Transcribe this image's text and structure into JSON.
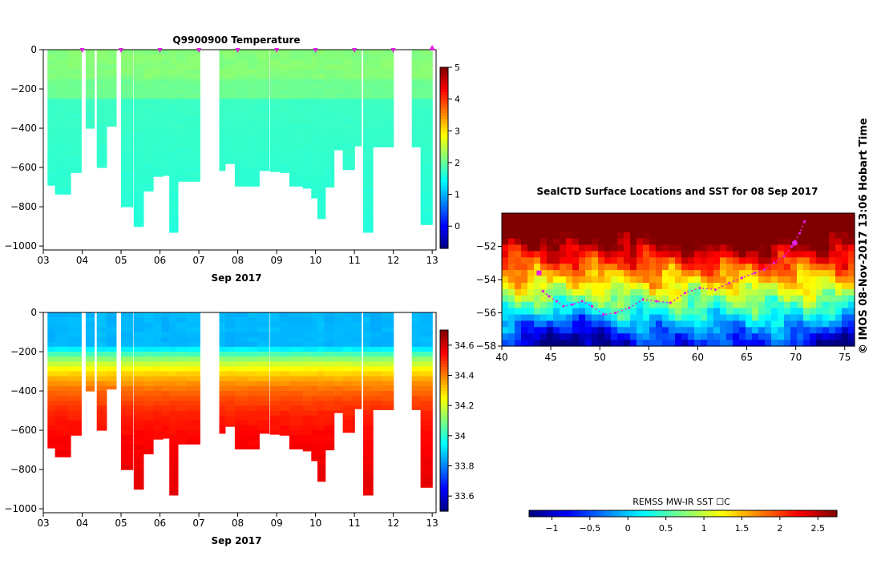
{
  "chart_data": [
    {
      "type": "heatmap",
      "title": "Q9900900  Temperature",
      "xlabel": "Sep 2017",
      "x_ticks": [
        "03",
        "04",
        "05",
        "06",
        "07",
        "08",
        "09",
        "10",
        "11",
        "12",
        "13"
      ],
      "y_ticks": [
        "0",
        "−200",
        "−400",
        "−600",
        "−800",
        "−1000"
      ],
      "xlim": [
        3.0,
        13.1
      ],
      "ylim": [
        -1020,
        0
      ],
      "colorbar": {
        "ticks": [
          "0",
          "1",
          "2",
          "3",
          "4",
          "5"
        ],
        "range": [
          -0.7,
          5
        ]
      },
      "profiles": [
        {
          "t": 3.25,
          "w": 0.28,
          "depth": 690
        },
        {
          "t": 3.5,
          "w": 0.4,
          "depth": 735
        },
        {
          "t": 3.8,
          "w": 0.35,
          "depth": 625
        },
        {
          "t": 4.2,
          "w": 0.22,
          "depth": 400
        },
        {
          "t": 4.5,
          "w": 0.25,
          "depth": 600
        },
        {
          "t": 4.75,
          "w": 0.25,
          "depth": 390
        },
        {
          "t": 5.15,
          "w": 0.3,
          "depth": 800
        },
        {
          "t": 5.45,
          "w": 0.25,
          "depth": 900
        },
        {
          "t": 5.7,
          "w": 0.25,
          "depth": 720
        },
        {
          "t": 5.95,
          "w": 0.25,
          "depth": 645
        },
        {
          "t": 6.15,
          "w": 0.22,
          "depth": 640
        },
        {
          "t": 6.35,
          "w": 0.22,
          "depth": 930
        },
        {
          "t": 6.55,
          "w": 0.25,
          "depth": 670
        },
        {
          "t": 6.85,
          "w": 0.35,
          "depth": 670
        },
        {
          "t": 7.6,
          "w": 0.15,
          "depth": 615
        },
        {
          "t": 7.8,
          "w": 0.25,
          "depth": 580
        },
        {
          "t": 8.1,
          "w": 0.35,
          "depth": 695
        },
        {
          "t": 8.4,
          "w": 0.3,
          "depth": 695
        },
        {
          "t": 8.65,
          "w": 0.3,
          "depth": 615
        },
        {
          "t": 8.95,
          "w": 0.25,
          "depth": 620
        },
        {
          "t": 9.2,
          "w": 0.25,
          "depth": 625
        },
        {
          "t": 9.5,
          "w": 0.35,
          "depth": 695
        },
        {
          "t": 9.8,
          "w": 0.25,
          "depth": 705
        },
        {
          "t": 10.0,
          "w": 0.22,
          "depth": 755
        },
        {
          "t": 10.15,
          "w": 0.2,
          "depth": 860
        },
        {
          "t": 10.35,
          "w": 0.25,
          "depth": 700
        },
        {
          "t": 10.6,
          "w": 0.25,
          "depth": 510
        },
        {
          "t": 10.85,
          "w": 0.3,
          "depth": 610
        },
        {
          "t": 11.05,
          "w": 0.25,
          "depth": 490
        },
        {
          "t": 11.35,
          "w": 0.25,
          "depth": 930
        },
        {
          "t": 11.55,
          "w": 0.3,
          "depth": 495
        },
        {
          "t": 11.85,
          "w": 0.3,
          "depth": 495
        },
        {
          "t": 12.6,
          "w": 0.25,
          "depth": 495
        },
        {
          "t": 12.85,
          "w": 0.3,
          "depth": 890
        }
      ],
      "surface_markers": [
        4,
        5,
        6,
        7,
        8,
        9,
        10,
        11,
        12,
        13
      ]
    },
    {
      "type": "heatmap",
      "title": "",
      "xlabel": "Sep 2017",
      "x_ticks": [
        "03",
        "04",
        "05",
        "06",
        "07",
        "08",
        "09",
        "10",
        "11",
        "12",
        "13"
      ],
      "y_ticks": [
        "0",
        "−200",
        "−400",
        "−600",
        "−800",
        "−1000"
      ],
      "xlim": [
        3.0,
        13.1
      ],
      "ylim": [
        -1020,
        0
      ],
      "colorbar": {
        "ticks": [
          "33.6",
          "33.8",
          "34",
          "34.2",
          "34.4",
          "34.6"
        ],
        "range": [
          33.5,
          34.7
        ]
      }
    },
    {
      "type": "heatmap",
      "title": "SealCTD Surface Locations and SST for 08 Sep 2017",
      "x_ticks": [
        "40",
        "45",
        "50",
        "55",
        "60",
        "65",
        "70",
        "75"
      ],
      "y_ticks": [
        "−52",
        "−54",
        "−56",
        "−58"
      ],
      "xlim": [
        40,
        76
      ],
      "ylim": [
        -58,
        -50
      ],
      "colorbar_label": "REMSS MW-IR SST ☐C",
      "colorbar_ticks": [
        "−1",
        "−0.5",
        "0",
        "0.5",
        "1",
        "1.5",
        "2",
        "2.5"
      ],
      "colorbar_range": [
        -1.3,
        2.75
      ],
      "track": [
        [
          44.2,
          -54.7
        ],
        [
          44.8,
          -55.0
        ],
        [
          45.6,
          -55.3
        ],
        [
          46.3,
          -55.6
        ],
        [
          47.2,
          -55.5
        ],
        [
          48.2,
          -55.3
        ],
        [
          49.2,
          -55.6
        ],
        [
          50.4,
          -56.1
        ],
        [
          51.6,
          -56.0
        ],
        [
          53.0,
          -55.7
        ],
        [
          54.4,
          -55.2
        ],
        [
          55.8,
          -55.3
        ],
        [
          57.2,
          -55.4
        ],
        [
          58.7,
          -54.8
        ],
        [
          60.2,
          -54.5
        ],
        [
          61.8,
          -54.6
        ],
        [
          63.2,
          -54.2
        ],
        [
          64.5,
          -53.9
        ],
        [
          65.8,
          -53.6
        ],
        [
          66.8,
          -53.4
        ],
        [
          67.8,
          -53.0
        ],
        [
          68.8,
          -52.6
        ],
        [
          69.6,
          -52.0
        ],
        [
          70.4,
          -51.2
        ],
        [
          70.9,
          -50.5
        ]
      ],
      "track_start": [
        43.8,
        -53.6
      ],
      "latest_position": [
        69.9,
        -51.8
      ]
    }
  ],
  "sidebar_text": "©  IMOS 08-Nov-2017 13:06 Hobart Time"
}
